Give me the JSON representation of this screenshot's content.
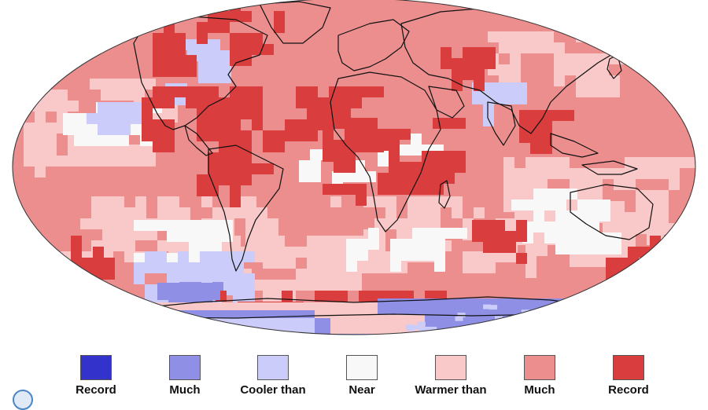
{
  "map": {
    "projection": "robinson",
    "palette": {
      "record_coldest": "#3333cc",
      "much_cooler": "#8f8fe6",
      "cooler": "#ccccfa",
      "near_average": "#f8f8f8",
      "warmer": "#f9c8c8",
      "much_warmer": "#ec8e8e",
      "record_warmest": "#d93d3d",
      "coastline": "#111111"
    }
  },
  "legend": {
    "items": [
      {
        "label": "Record",
        "color": "#3333cc"
      },
      {
        "label": "Much",
        "color": "#8f8fe6"
      },
      {
        "label": "Cooler than",
        "color": "#ccccfa"
      },
      {
        "label": "Near",
        "color": "#f8f8f8"
      },
      {
        "label": "Warmer than",
        "color": "#f9c8c8"
      },
      {
        "label": "Much",
        "color": "#ec8e8e"
      },
      {
        "label": "Record",
        "color": "#d93d3d"
      }
    ]
  },
  "logo": {
    "icon": "noaa-logo-icon"
  }
}
